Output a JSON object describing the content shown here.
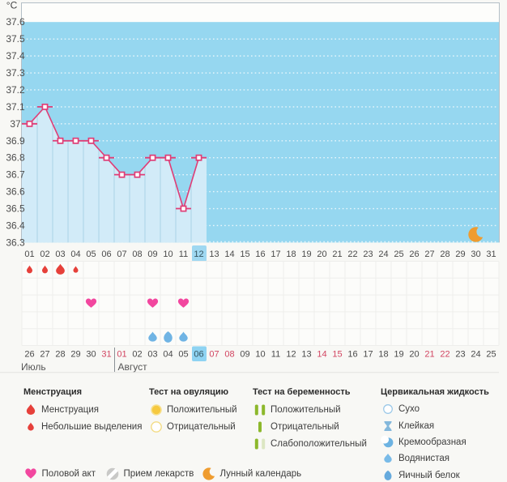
{
  "chart_data": {
    "type": "line",
    "title": "",
    "ylabel": "°C",
    "unit_label": "°C",
    "ylim": [
      36.3,
      37.6
    ],
    "ytick_step": 0.1,
    "yticks": [
      "37.6",
      "37.5",
      "37.4",
      "37.3",
      "37.2",
      "37.1",
      "37",
      "36.9",
      "36.8",
      "36.7",
      "36.6",
      "36.5",
      "36.4",
      "36.3"
    ],
    "x_labels": [
      "01",
      "02",
      "03",
      "04",
      "05",
      "06",
      "07",
      "08",
      "09",
      "10",
      "11",
      "12",
      "13",
      "14",
      "15",
      "16",
      "17",
      "18",
      "19",
      "20",
      "21",
      "22",
      "23",
      "24",
      "25",
      "26",
      "27",
      "28",
      "29",
      "30",
      "31"
    ],
    "series": [
      {
        "name": "basal-temperature",
        "values": [
          37.0,
          37.1,
          36.9,
          36.9,
          36.9,
          36.8,
          36.7,
          36.7,
          36.8,
          36.8,
          36.5,
          36.8,
          null,
          null,
          null,
          null,
          null,
          null,
          null,
          null,
          null,
          null,
          null,
          null,
          null,
          null,
          null,
          null,
          null,
          null,
          null
        ]
      }
    ],
    "grid": "dotted-white-horizontal",
    "legend_position": "bottom",
    "annotations": [
      {
        "type": "moon",
        "day": 30
      }
    ],
    "selected_day": "12"
  },
  "calendar": {
    "selected_cycle_day": "12",
    "selected_date": "06",
    "months": [
      {
        "label": "Июль"
      },
      {
        "label": "Август"
      }
    ],
    "dates": [
      {
        "label": "26",
        "weekend": false
      },
      {
        "label": "27",
        "weekend": false
      },
      {
        "label": "28",
        "weekend": false
      },
      {
        "label": "29",
        "weekend": false
      },
      {
        "label": "30",
        "weekend": false
      },
      {
        "label": "31",
        "weekend": true
      },
      {
        "label": "01",
        "weekend": true
      },
      {
        "label": "02",
        "weekend": false
      },
      {
        "label": "03",
        "weekend": false
      },
      {
        "label": "04",
        "weekend": false
      },
      {
        "label": "05",
        "weekend": false
      },
      {
        "label": "06",
        "weekend": false
      },
      {
        "label": "07",
        "weekend": true
      },
      {
        "label": "08",
        "weekend": true
      },
      {
        "label": "09",
        "weekend": false
      },
      {
        "label": "10",
        "weekend": false
      },
      {
        "label": "11",
        "weekend": false
      },
      {
        "label": "12",
        "weekend": false
      },
      {
        "label": "13",
        "weekend": false
      },
      {
        "label": "14",
        "weekend": true
      },
      {
        "label": "15",
        "weekend": true
      },
      {
        "label": "16",
        "weekend": false
      },
      {
        "label": "17",
        "weekend": false
      },
      {
        "label": "18",
        "weekend": false
      },
      {
        "label": "19",
        "weekend": false
      },
      {
        "label": "20",
        "weekend": false
      },
      {
        "label": "21",
        "weekend": true
      },
      {
        "label": "22",
        "weekend": true
      },
      {
        "label": "23",
        "weekend": false
      },
      {
        "label": "24",
        "weekend": false
      },
      {
        "label": "25",
        "weekend": false
      }
    ],
    "month_split_after_index": 5
  },
  "symbol_rows": [
    {
      "name": "menstruation",
      "entries": [
        {
          "day": 1,
          "icon": "drop-red",
          "size": "medium"
        },
        {
          "day": 2,
          "icon": "drop-red",
          "size": "medium"
        },
        {
          "day": 3,
          "icon": "drop-red",
          "size": "large"
        },
        {
          "day": 4,
          "icon": "drop-red",
          "size": "small"
        }
      ]
    },
    {
      "name": "ovulation-test",
      "entries": []
    },
    {
      "name": "intercourse",
      "entries": [
        {
          "day": 5,
          "icon": "heart-pink"
        },
        {
          "day": 9,
          "icon": "heart-pink"
        },
        {
          "day": 11,
          "icon": "heart-pink"
        }
      ]
    },
    {
      "name": "pregnancy-test",
      "entries": []
    },
    {
      "name": "cervical-fluid",
      "entries": [
        {
          "day": 9,
          "icon": "drop-blue"
        },
        {
          "day": 10,
          "icon": "egg-blue"
        },
        {
          "day": 11,
          "icon": "drop-blue"
        }
      ]
    }
  ],
  "legend": {
    "columns": [
      {
        "header": "Менструация",
        "items": [
          {
            "icon": "drop-red-medium",
            "label": "Менструация"
          },
          {
            "icon": "drop-red-small",
            "label": "Небольшие выделения"
          }
        ]
      },
      {
        "header": "Тест на овуляцию",
        "items": [
          {
            "icon": "circle-yellow-filled",
            "label": "Положительный"
          },
          {
            "icon": "circle-yellow-outline",
            "label": "Отрицательный"
          }
        ]
      },
      {
        "header": "Тест на беременность",
        "items": [
          {
            "icon": "bars-two-green",
            "label": "Положительный"
          },
          {
            "icon": "bar-one-green",
            "label": "Отрицательный"
          },
          {
            "icon": "bars-green-pale",
            "label": "Слабоположительный"
          }
        ]
      },
      {
        "header": "Цервикальная жидкость",
        "items": [
          {
            "icon": "circle-outline-blue",
            "label": "Сухо"
          },
          {
            "icon": "hourglass-blue",
            "label": "Клейкая"
          },
          {
            "icon": "comma-blue",
            "label": "Кремообразная"
          },
          {
            "icon": "drop-blue",
            "label": "Водянистая"
          },
          {
            "icon": "egg-blue",
            "label": "Яичный белок"
          }
        ]
      }
    ],
    "extras": [
      {
        "icon": "heart-pink",
        "label": "Половой акт"
      },
      {
        "icon": "pill-gray",
        "label": "Прием лекарств"
      },
      {
        "icon": "moon-orange",
        "label": "Лунный календарь"
      }
    ]
  },
  "colors": {
    "page_bg": "#f8f8f5",
    "chart_bg": "#96d7f0",
    "chart_top_band": "#fdfdfb",
    "area_fill": "#d2ebf8",
    "area_separator": "#a9d3e6",
    "line": "#e03d76",
    "border": "#b4bfc7",
    "grid_dot": "#ffffff",
    "day_text": "#4a4a4a",
    "weekend_text": "#d24561",
    "selected_bg": "#9fd8f1",
    "selected_text": "#35545f",
    "cell_grid_line": "#eeeeec",
    "cell_grid_bg": "#fcfcfa",
    "menstruation": "#e6403a",
    "heart": "#f2479f",
    "fluid": "#70b4e4",
    "moon": "#ef9c2f",
    "ovulation_fill": "#f6c93f",
    "ovulation_ring": "#f3dc85",
    "pregnancy_green": "#8cb82b",
    "pregnancy_pale": "#dce6c2",
    "pill_gray": "#c9c9c7",
    "month_text": "#555555",
    "divider": "#8b9196"
  }
}
